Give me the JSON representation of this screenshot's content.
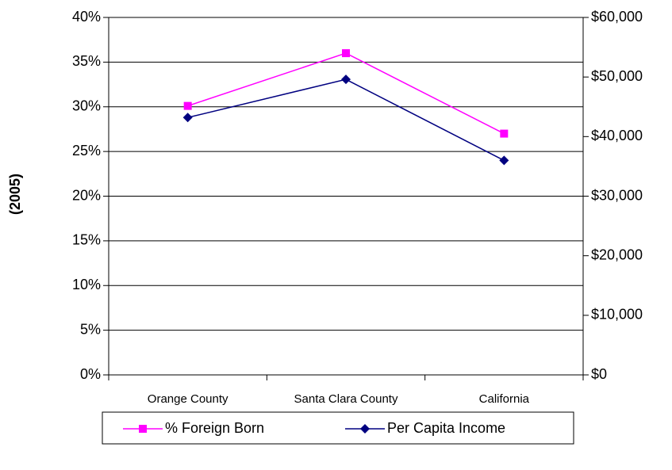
{
  "chart_data": {
    "type": "line",
    "y_label": "(2005)",
    "categories": [
      "Orange County",
      "Santa Clara County",
      "California"
    ],
    "series": [
      {
        "name": "% Foreign Born",
        "color": "#ff00ff",
        "marker": "square",
        "values": [
          30.1,
          36,
          27
        ]
      },
      {
        "name": "Per Capita Income",
        "color": "#000080",
        "marker": "diamond",
        "axis": "y2",
        "values": [
          43200,
          49600,
          36000
        ]
      }
    ],
    "ylim": [
      0,
      40
    ],
    "yticks": [
      {
        "value": 0,
        "label": "0%"
      },
      {
        "value": 5,
        "label": "5%"
      },
      {
        "value": 10,
        "label": "10%"
      },
      {
        "value": 15,
        "label": "15%"
      },
      {
        "value": 20,
        "label": "20%"
      },
      {
        "value": 25,
        "label": "25%"
      },
      {
        "value": 30,
        "label": "30%"
      },
      {
        "value": 35,
        "label": "35%"
      },
      {
        "value": 40,
        "label": "40%"
      }
    ],
    "y2lim": [
      0,
      60000
    ],
    "y2ticks": [
      {
        "value": 0,
        "label": "$0"
      },
      {
        "value": 10000,
        "label": "$10,000"
      },
      {
        "value": 20000,
        "label": "$20,000"
      },
      {
        "value": 30000,
        "label": "$30,000"
      },
      {
        "value": 40000,
        "label": "$40,000"
      },
      {
        "value": 50000,
        "label": "$50,000"
      },
      {
        "value": 60000,
        "label": "$60,000"
      }
    ],
    "grid": true,
    "legend": "bottom"
  }
}
